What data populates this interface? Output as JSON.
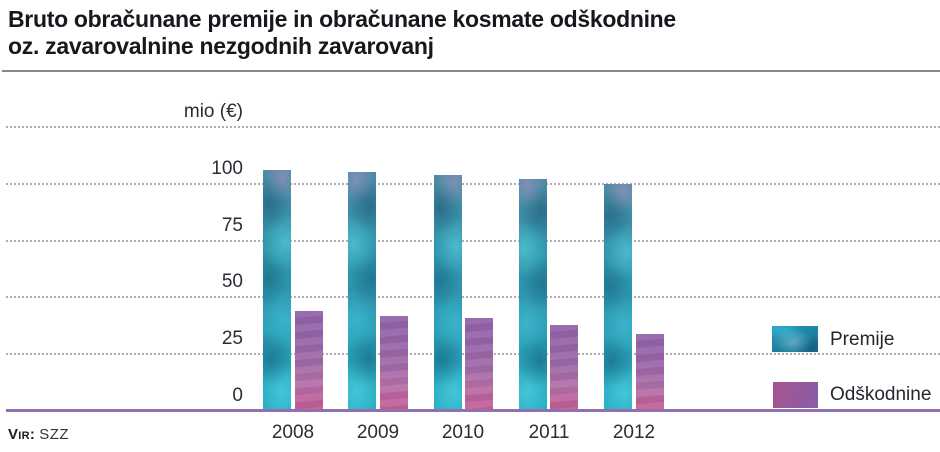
{
  "title": {
    "line1": "Bruto obračunane premije in obračunane kosmate odškodnine",
    "line2": "oz. zavarovalnine nezgodnih zavarovanj"
  },
  "source": {
    "label": "Vir:",
    "value": "SZZ"
  },
  "chart_data": {
    "type": "bar",
    "title": "Bruto obračunane premije in obračunane kosmate odškodnine oz. zavarovalnine nezgodnih zavarovanj",
    "unit_label": "mio (€)",
    "categories": [
      "2008",
      "2009",
      "2010",
      "2011",
      "2012"
    ],
    "series": [
      {
        "name": "Premije",
        "values": [
          106,
          105,
          104,
          102,
          100
        ]
      },
      {
        "name": "Odškodnine",
        "values": [
          44,
          42,
          41,
          38,
          34
        ]
      }
    ],
    "yticks": [
      0,
      25,
      50,
      75,
      100
    ],
    "ylim": [
      0,
      125
    ],
    "grid": "horizontal-dotted",
    "legend_position": "right",
    "colors": {
      "premije": "#2e93a9",
      "odskodnine_top": "#9263a8",
      "odskodnine_bottom": "#c75f96",
      "gridline": "#b3aab8",
      "axis_line": "#9171ad",
      "tick_text": "#2c2c35",
      "title_text": "#17171e"
    }
  }
}
